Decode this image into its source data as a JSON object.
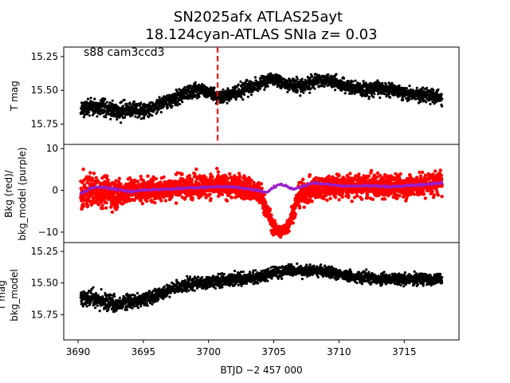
{
  "chart_data": {
    "title_line1": "SN2025afx  ATLAS25ayt",
    "title_line2": "18.124cyan-ATLAS SNIa z= 0.03",
    "xlabel": "BTJD −2 457 000",
    "xlim": [
      3688.9,
      3719.2
    ],
    "xticks": [
      3690,
      3695,
      3700,
      3705,
      3710,
      3715
    ],
    "vline_x": 3700.7,
    "panels": [
      {
        "type": "scatter",
        "ylabel": "T mag",
        "ylim": [
          15.9,
          15.18
        ],
        "yticks": [
          15.25,
          15.5,
          15.75
        ],
        "annotation": "s88 cam3ccd3",
        "series": [
          {
            "color": "#000000",
            "x": [
              3690.2,
              3691,
              3692,
              3693,
              3694,
              3695,
              3696,
              3697,
              3698,
              3699,
              3700,
              3700.7,
              3701,
              3702,
              3703,
              3704,
              3705,
              3706,
              3707,
              3708,
              3709,
              3710,
              3711,
              3712,
              3713,
              3714,
              3715,
              3716,
              3717,
              3717.9
            ],
            "y": [
              15.64,
              15.62,
              15.63,
              15.66,
              15.64,
              15.65,
              15.61,
              15.58,
              15.53,
              15.5,
              15.51,
              15.55,
              15.55,
              15.52,
              15.48,
              15.45,
              15.42,
              15.45,
              15.47,
              15.44,
              15.42,
              15.45,
              15.48,
              15.5,
              15.48,
              15.5,
              15.52,
              15.53,
              15.54,
              15.55
            ],
            "scatter": [
              0.1,
              0.1,
              0.11,
              0.12,
              0.1,
              0.1,
              0.09,
              0.09,
              0.09,
              0.09,
              0.09,
              0.1,
              0.09,
              0.09,
              0.09,
              0.08,
              0.08,
              0.09,
              0.09,
              0.09,
              0.09,
              0.09,
              0.09,
              0.09,
              0.09,
              0.09,
              0.09,
              0.09,
              0.09,
              0.09
            ]
          }
        ]
      },
      {
        "type": "scatter",
        "ylabel_line1": "Bkg (red)/",
        "ylabel_line2": "bkg_model (purple)",
        "ylim": [
          -12.5,
          11
        ],
        "yticks": [
          -10,
          0,
          10
        ],
        "series": [
          {
            "name": "Bkg",
            "color": "#ff0000",
            "x": [
              3690.2,
              3691,
              3692,
              3693,
              3694,
              3695,
              3696,
              3697,
              3698,
              3699,
              3700,
              3701,
              3702,
              3703,
              3704,
              3704.5,
              3705,
              3705.5,
              3706,
              3706.5,
              3707,
              3708,
              3709,
              3710,
              3711,
              3712,
              3713,
              3714,
              3715,
              3716,
              3717,
              3717.9
            ],
            "y": [
              -1,
              0,
              0,
              -1,
              0,
              0,
              0,
              0.5,
              1,
              1,
              1,
              1,
              1,
              0.5,
              -1,
              -5,
              -9,
              -10,
              -9,
              -5,
              -1,
              0,
              1,
              1,
              1,
              1,
              1,
              1,
              1,
              1,
              1.5,
              2
            ],
            "scatter": [
              7,
              7,
              6.5,
              6,
              5,
              5,
              5,
              5,
              5,
              5,
              5,
              5,
              5,
              5,
              5,
              4,
              3,
              2.5,
              3,
              4,
              5,
              5,
              5,
              5,
              5,
              5,
              5,
              5,
              5,
              5,
              5,
              5
            ]
          },
          {
            "name": "bkg_model",
            "color": "#9a1ec8",
            "x": [
              3690.2,
              3691,
              3692,
              3693,
              3694,
              3695,
              3696,
              3697,
              3698,
              3699,
              3700,
              3701,
              3702,
              3703,
              3704,
              3704.5,
              3705,
              3705.5,
              3706,
              3706.5,
              3707,
              3708,
              3709,
              3710,
              3711,
              3712,
              3713,
              3714,
              3715,
              3716,
              3717,
              3717.9
            ],
            "y": [
              -0.8,
              0.5,
              0.8,
              0.2,
              -0.3,
              0.1,
              0.2,
              0.3,
              0.5,
              0.7,
              0.8,
              0.9,
              0.8,
              0.4,
              -0.2,
              -0.5,
              0.8,
              1.6,
              0.9,
              0.3,
              0.8,
              1.7,
              1.5,
              1.2,
              1.0,
              1.1,
              1.0,
              0.9,
              1.2,
              1.3,
              1.5,
              1.8
            ]
          }
        ]
      },
      {
        "type": "scatter",
        "ylabel_line1": "T mag",
        "ylabel_line2": "bkg_model",
        "ylim": [
          15.95,
          15.18
        ],
        "yticks": [
          15.25,
          15.5,
          15.75
        ],
        "series": [
          {
            "color": "#000000",
            "x": [
              3690.2,
              3691,
              3692,
              3693,
              3694,
              3695,
              3696,
              3697,
              3698,
              3699,
              3700,
              3701,
              3702,
              3703,
              3704,
              3705,
              3706,
              3707,
              3708,
              3709,
              3710,
              3711,
              3712,
              3713,
              3714,
              3715,
              3716,
              3717,
              3717.9
            ],
            "y": [
              15.63,
              15.62,
              15.64,
              15.67,
              15.65,
              15.63,
              15.6,
              15.56,
              15.52,
              15.5,
              15.5,
              15.48,
              15.47,
              15.46,
              15.45,
              15.42,
              15.4,
              15.41,
              15.4,
              15.41,
              15.43,
              15.45,
              15.46,
              15.47,
              15.46,
              15.47,
              15.47,
              15.47,
              15.47
            ],
            "scatter": [
              0.11,
              0.11,
              0.12,
              0.13,
              0.11,
              0.1,
              0.1,
              0.09,
              0.09,
              0.09,
              0.09,
              0.09,
              0.09,
              0.09,
              0.08,
              0.08,
              0.08,
              0.08,
              0.08,
              0.08,
              0.08,
              0.08,
              0.08,
              0.08,
              0.08,
              0.08,
              0.08,
              0.08,
              0.08
            ]
          }
        ]
      }
    ]
  }
}
